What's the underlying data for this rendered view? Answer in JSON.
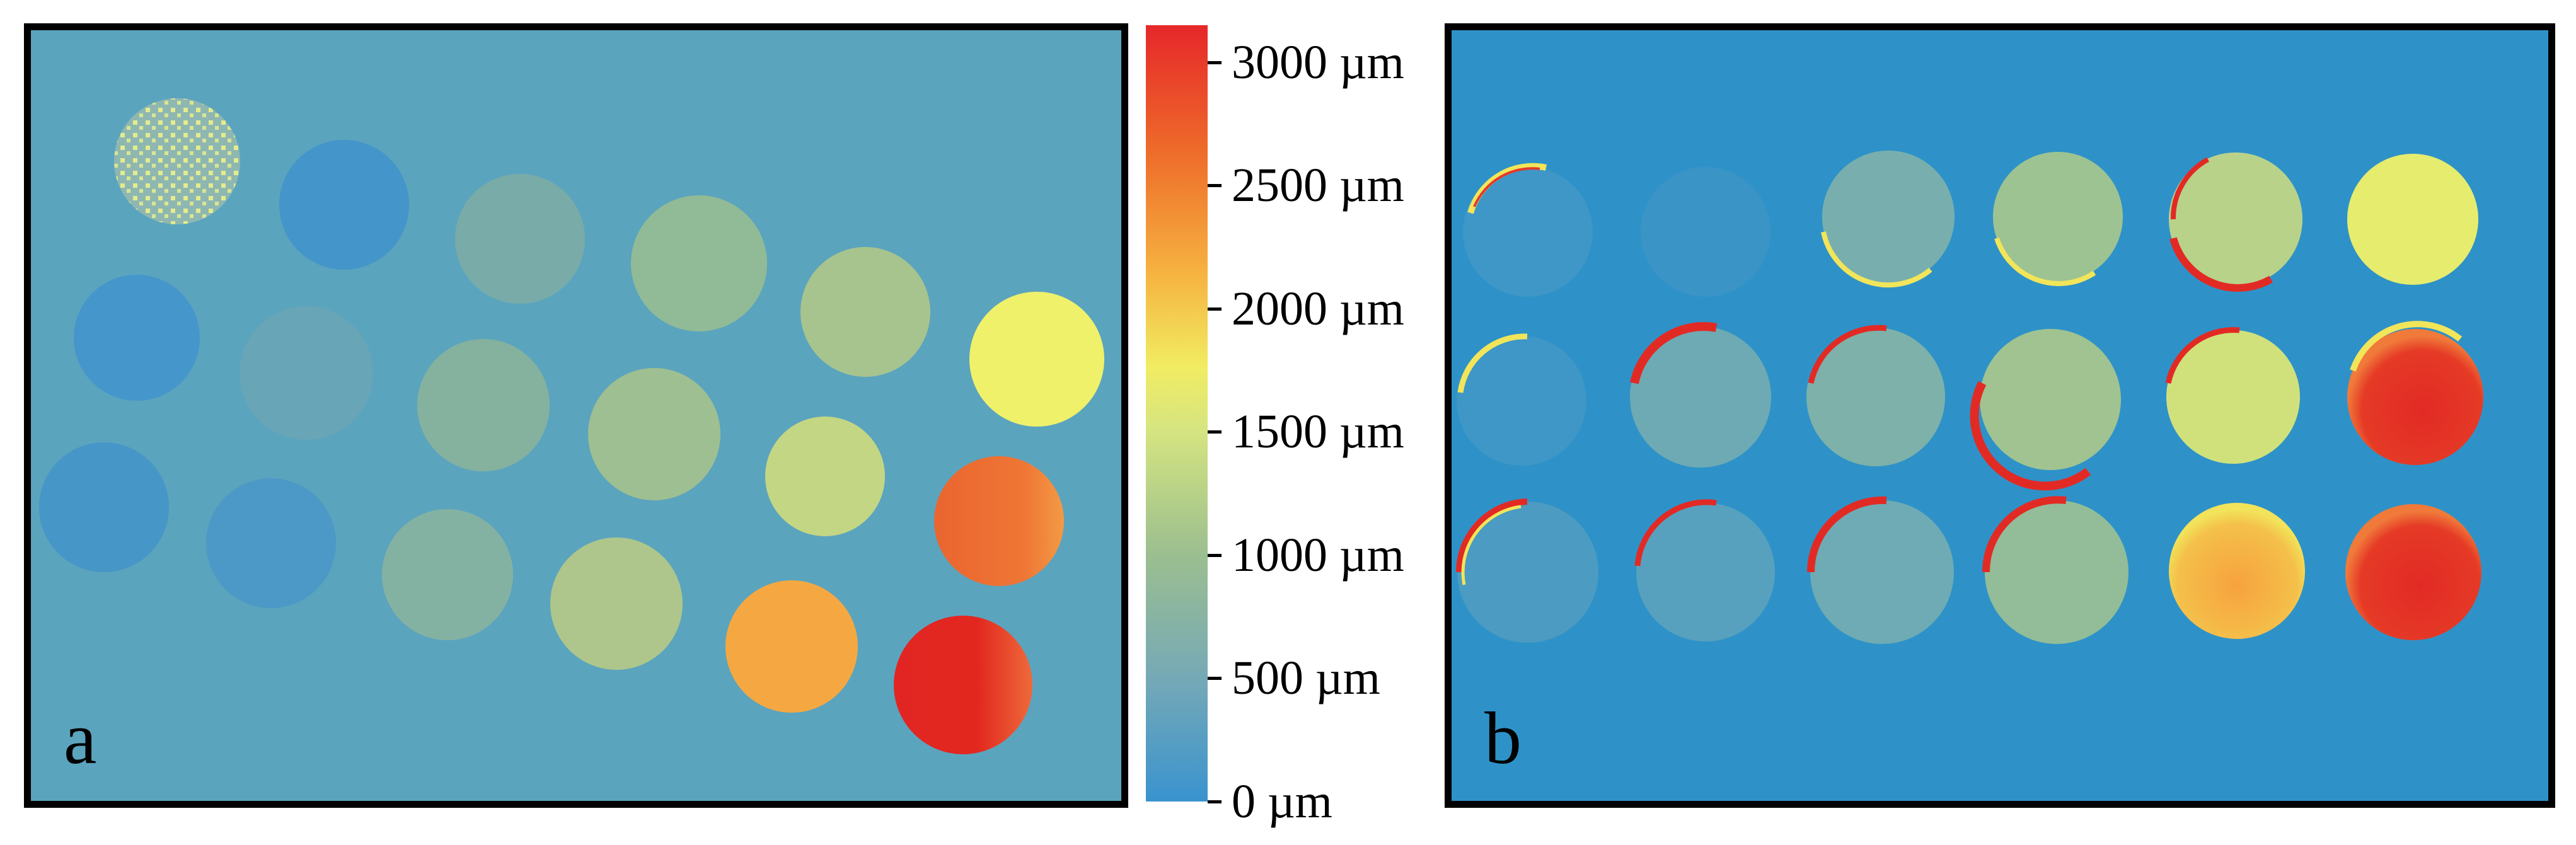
{
  "panels": {
    "a": {
      "label": "a",
      "background": "#5ba4be"
    },
    "b": {
      "label": "b",
      "background": "#2e92c8"
    }
  },
  "colorbar": {
    "unit": "µm",
    "min": 0,
    "max": 3150,
    "ticks": [
      {
        "value": 3000,
        "label": "3000 µm"
      },
      {
        "value": 2500,
        "label": "2500 µm"
      },
      {
        "value": 2000,
        "label": "2000 µm"
      },
      {
        "value": 1500,
        "label": "1500 µm"
      },
      {
        "value": 1000,
        "label": "1000 µm"
      },
      {
        "value": 500,
        "label": "500 µm"
      },
      {
        "value": 0,
        "label": "0 µm"
      }
    ],
    "colors": {
      "low": "#3a93cf",
      "mid": "#f1ec62",
      "high": "#e6272a"
    }
  }
}
